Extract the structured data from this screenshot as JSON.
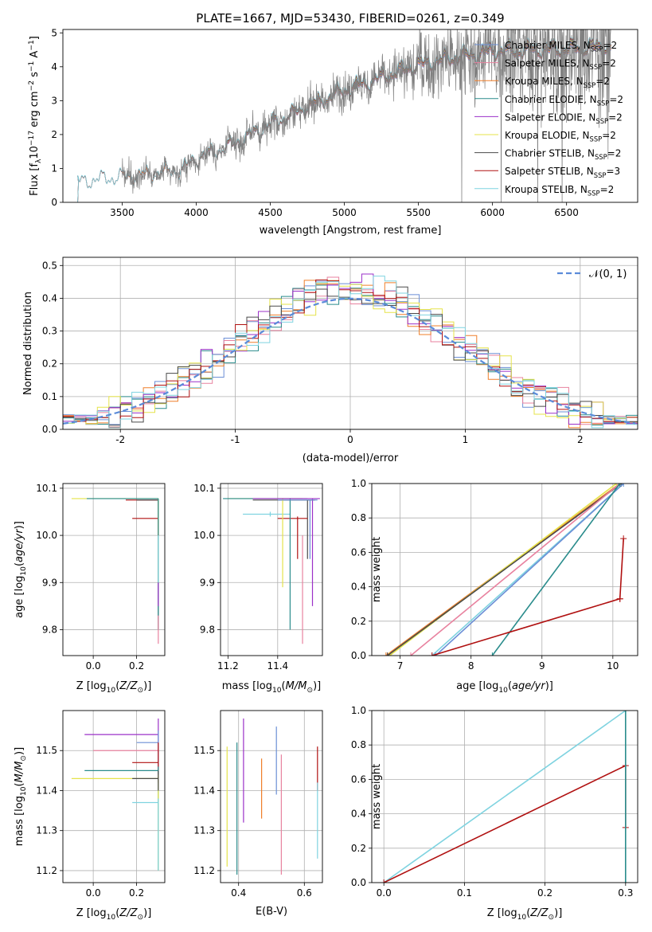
{
  "figure": {
    "title": "PLATE=1667, MJD=53430, FIBERID=0261, z=0.349"
  },
  "colors": {
    "Chabrier MILES": "#6b8fd6",
    "Salpeter MILES": "#e8829f",
    "Kroupa MILES": "#ef7f2a",
    "Chabrier ELODIE": "#2a8c8c",
    "Salpeter ELODIE": "#9b30c8",
    "Kroupa ELODIE": "#e5e34a",
    "Chabrier STELIB": "#4a4a4a",
    "Salpeter STELIB": "#b01010",
    "Kroupa STELIB": "#7fd3e0",
    "data": "#808080",
    "normal": "#5b8bd9",
    "grid": "#b0b0b0"
  },
  "chart_data": [
    {
      "id": "spectrum",
      "type": "line",
      "xlabel": "wavelength [Angstrom, rest frame]",
      "ylabel_parts": [
        "Flux [f",
        "λ",
        "10",
        "−17",
        " erg cm",
        "−2",
        " s",
        "−1",
        " A",
        "−1",
        "]"
      ],
      "xlim": [
        3100,
        6980
      ],
      "ylim": [
        0,
        5.1
      ],
      "xticks": [
        3500,
        4000,
        4500,
        5000,
        5500,
        6000,
        6500
      ],
      "yticks": [
        0,
        1,
        2,
        3,
        4,
        5
      ],
      "legend_position": "right",
      "legend": [
        {
          "name": "Chabrier MILES",
          "n": "2"
        },
        {
          "name": "Salpeter MILES",
          "n": "2"
        },
        {
          "name": "Kroupa MILES",
          "n": "2"
        },
        {
          "name": "Chabrier ELODIE",
          "n": "2"
        },
        {
          "name": "Salpeter ELODIE",
          "n": "2"
        },
        {
          "name": "Kroupa ELODIE",
          "n": "2"
        },
        {
          "name": "Chabrier STELIB",
          "n": "2"
        },
        {
          "name": "Salpeter STELIB",
          "n": "3"
        },
        {
          "name": "Kroupa STELIB",
          "n": "2"
        }
      ],
      "legend_n_label": "N",
      "legend_n_sub": "SSP",
      "data_range": [
        3500,
        6800
      ],
      "model_coverage": {
        "MILES": [
          3500,
          6800
        ],
        "ELODIE": [
          3900,
          6800
        ],
        "STELIB": [
          3200,
          6800
        ]
      },
      "continuum_points": [
        [
          3200,
          0.6
        ],
        [
          3500,
          0.75
        ],
        [
          3700,
          0.85
        ],
        [
          3900,
          0.95
        ],
        [
          4000,
          1.3
        ],
        [
          4200,
          1.6
        ],
        [
          4500,
          2.3
        ],
        [
          4800,
          2.9
        ],
        [
          5000,
          3.3
        ],
        [
          5200,
          3.6
        ],
        [
          5500,
          4.05
        ],
        [
          5800,
          4.3
        ],
        [
          6000,
          4.45
        ],
        [
          6300,
          4.5
        ],
        [
          6600,
          4.55
        ],
        [
          6800,
          4.6
        ]
      ]
    },
    {
      "id": "residuals",
      "type": "histogram",
      "xlabel": "(data-model)/error",
      "ylabel": "Normed distribution",
      "xlim": [
        -2.5,
        2.5
      ],
      "ylim": [
        0,
        0.525
      ],
      "xticks": [
        -2,
        -1,
        0,
        1,
        2
      ],
      "yticks": [
        0.0,
        0.1,
        0.2,
        0.3,
        0.4,
        0.5
      ],
      "legend": "𝒩(0, 1)",
      "legend_position": "top-right",
      "bin_width": 0.1,
      "bin_start": -2.5
    },
    {
      "id": "age_vs_Z",
      "type": "errorbar",
      "xlabel": "Z [log10(Z/Z⊙)]",
      "ylabel": "age [log10(age/yr)]",
      "xlim": [
        -0.14,
        0.33
      ],
      "ylim": [
        9.745,
        10.11
      ],
      "xticks": [
        0.0,
        0.2
      ],
      "yticks": [
        9.8,
        9.9,
        10.0,
        10.1
      ]
    },
    {
      "id": "age_vs_mass",
      "type": "errorbar",
      "xlabel": "mass [log10(M/M⊙)]",
      "xlim": [
        11.17,
        11.58
      ],
      "ylim": [
        9.745,
        10.11
      ],
      "xticks": [
        11.2,
        11.4
      ],
      "yticks": [
        9.8,
        9.9,
        10.0,
        10.1
      ]
    },
    {
      "id": "cumweight_age",
      "type": "line",
      "xlabel": "age [log10(age/yr)]",
      "ylabel": "mass weight",
      "xlim": [
        6.6,
        10.35
      ],
      "ylim": [
        0,
        1
      ],
      "xticks": [
        7,
        8,
        9,
        10
      ],
      "yticks": [
        0.0,
        0.2,
        0.4,
        0.6,
        0.8,
        1.0
      ],
      "series": [
        {
          "model": "Kroupa MILES",
          "x": [
            6.8,
            10.1
          ],
          "y": [
            0,
            1.0
          ]
        },
        {
          "model": "Kroupa ELODIE",
          "x": [
            6.85,
            10.05
          ],
          "y": [
            0,
            1.0
          ]
        },
        {
          "model": "Chabrier STELIB",
          "x": [
            6.82,
            10.12
          ],
          "y": [
            0,
            1.0
          ]
        },
        {
          "model": "Salpeter MILES",
          "x": [
            7.15,
            10.1
          ],
          "y": [
            0,
            1.0
          ]
        },
        {
          "model": "Kroupa STELIB",
          "x": [
            7.45,
            10.15
          ],
          "y": [
            0,
            1.0
          ]
        },
        {
          "model": "Chabrier MILES",
          "x": [
            7.5,
            10.15
          ],
          "y": [
            0,
            1.0
          ]
        },
        {
          "model": "Chabrier ELODIE",
          "x": [
            8.3,
            10.1
          ],
          "y": [
            0,
            1.0
          ]
        },
        {
          "model": "Salpeter STELIB",
          "x": [
            7.45,
            10.1,
            10.1,
            10.15
          ],
          "y": [
            0,
            0.33,
            0.33,
            0.68
          ]
        }
      ]
    },
    {
      "id": "mass_vs_Z",
      "type": "errorbar",
      "xlabel": "Z [log10(Z/Z⊙)]",
      "ylabel": "mass [log10(M/M⊙)]",
      "xlim": [
        -0.14,
        0.33
      ],
      "ylim": [
        11.17,
        11.6
      ],
      "xticks": [
        0.0,
        0.2
      ],
      "yticks": [
        11.2,
        11.3,
        11.4,
        11.5
      ]
    },
    {
      "id": "mass_vs_EBV",
      "type": "errorbar",
      "xlabel": "E(B-V)",
      "xlim": [
        0.345,
        0.655
      ],
      "ylim": [
        11.17,
        11.6
      ],
      "xticks": [
        0.4,
        0.6
      ],
      "yticks": [
        11.2,
        11.3,
        11.4,
        11.5
      ]
    },
    {
      "id": "cumweight_Z",
      "type": "line",
      "xlabel": "Z [log10(Z/Z⊙)]",
      "ylabel": "mass weight",
      "xlim": [
        -0.015,
        0.315
      ],
      "ylim": [
        0,
        1
      ],
      "xticks": [
        0.0,
        0.1,
        0.2,
        0.3
      ],
      "yticks": [
        0.0,
        0.2,
        0.4,
        0.6,
        0.8,
        1.0
      ],
      "series": [
        {
          "model": "Kroupa STELIB",
          "x": [
            0,
            0.3
          ],
          "y": [
            0,
            1.0
          ]
        },
        {
          "model": "Salpeter STELIB",
          "x": [
            0,
            0.3,
            0.3
          ],
          "y": [
            0,
            0.68,
            0.32
          ]
        },
        {
          "model": "Chabrier ELODIE",
          "x": [
            0.3,
            0.3
          ],
          "y": [
            0,
            1.0
          ]
        }
      ]
    }
  ]
}
